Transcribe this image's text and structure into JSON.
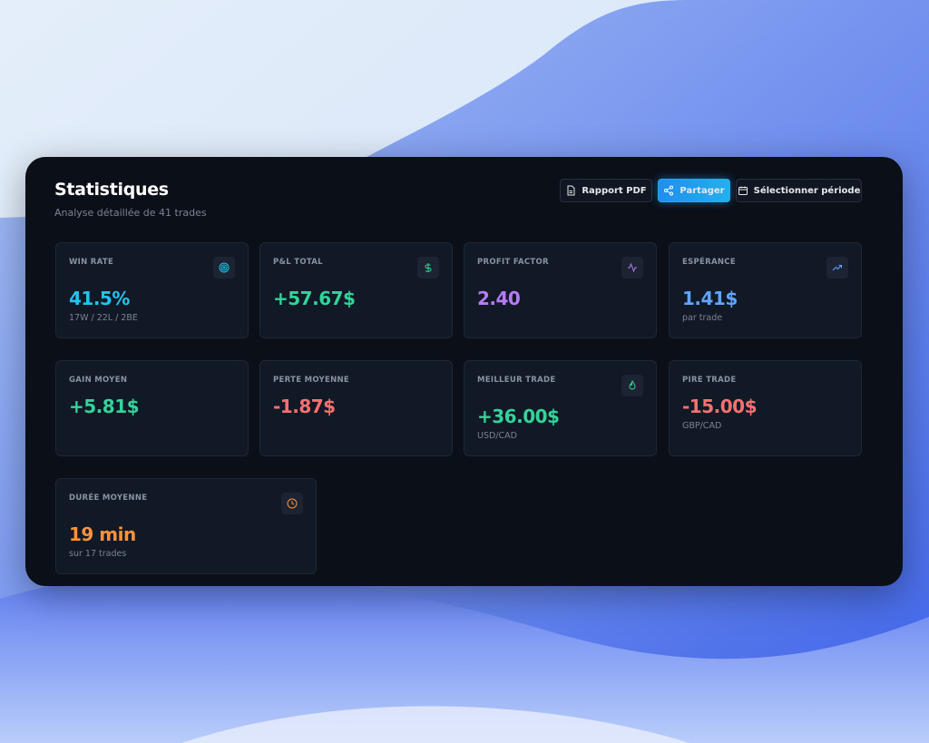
{
  "header": {
    "title": "Statistiques",
    "subtitle": "Analyse détaillée de 41 trades"
  },
  "buttons": [
    "Rapport PDF",
    "Partager",
    "Sélectionner période"
  ],
  "cards": [
    {
      "label": "WIN RATE",
      "value": "41.5%",
      "sub": "17W / 22L / 2BE"
    },
    {
      "label": "P&L TOTAL",
      "value": "+57.67$"
    },
    {
      "label": "PROFIT FACTOR",
      "value": "2.40"
    },
    {
      "label": "ESPÉRANCE",
      "value": "1.41$",
      "sub": "par trade"
    },
    {
      "label": "GAIN MOYEN",
      "value": "+5.81$"
    },
    {
      "label": "PERTE MOYENNE",
      "value": "-1.87$"
    },
    {
      "label": "MEILLEUR TRADE",
      "value": "+36.00$",
      "sub": "USD/CAD"
    },
    {
      "label": "PIRE TRADE",
      "value": "-15.00$",
      "sub": "GBP/CAD"
    },
    {
      "label": "DURÉE MOYENNE",
      "value": "19 min",
      "sub": "sur 17 trades"
    }
  ]
}
